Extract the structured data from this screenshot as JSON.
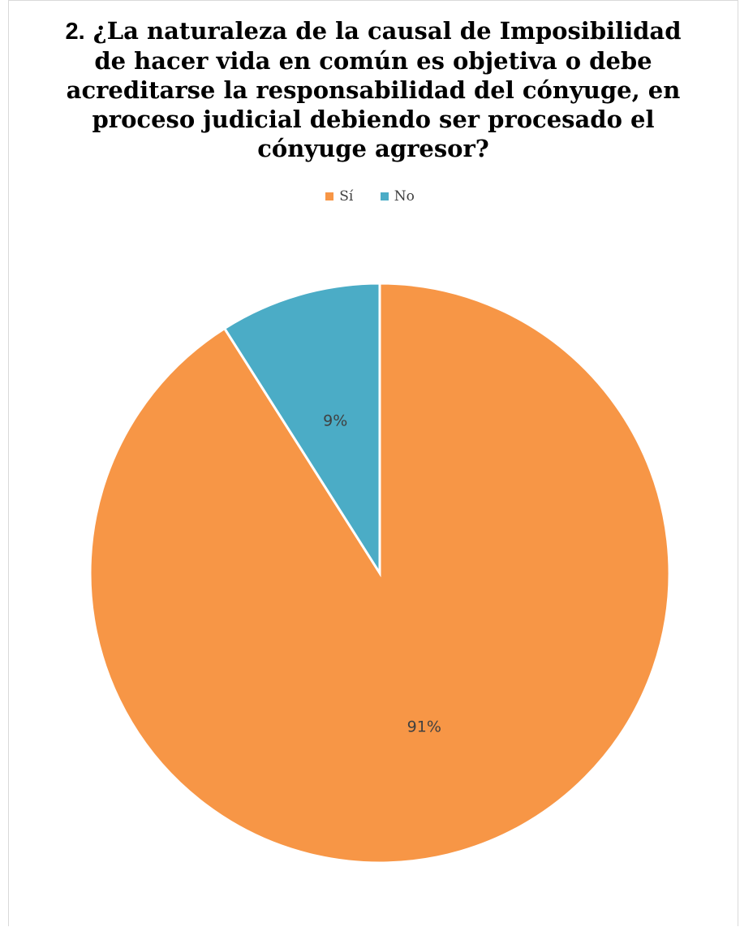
{
  "chart_data": {
    "type": "pie",
    "title_number": "2.",
    "title": "¿La naturaleza de la causal de Imposibilidad de hacer vida en común es objetiva o debe acreditarse la responsabilidad del cónyuge, en proceso judicial debiendo ser procesado el cónyuge agresor?",
    "categories": [
      "Sí",
      "No"
    ],
    "values": [
      91,
      9
    ],
    "labels": [
      "91%",
      "9%"
    ],
    "colors": [
      "#F79646",
      "#4BACC6"
    ],
    "legend_position": "top"
  }
}
